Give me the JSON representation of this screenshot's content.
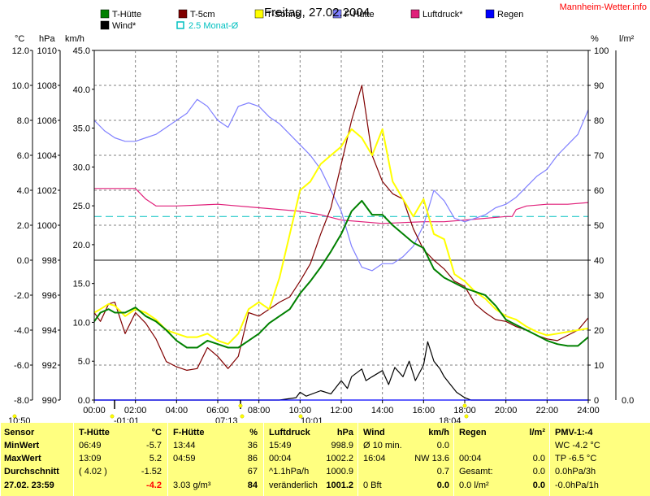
{
  "header": {
    "title": "Freitag, 27.02.2004",
    "brand": "Mannheim-Wetter.info"
  },
  "legend": [
    {
      "label": "T-Hütte",
      "color": "#008000"
    },
    {
      "label": "T-5cm",
      "color": "#800000"
    },
    {
      "label": "T-Sonne",
      "color": "#ffff00"
    },
    {
      "label": "F-Hütte",
      "color": "#8080ff"
    },
    {
      "label": "Luftdruck*",
      "color": "#e0207a"
    },
    {
      "label": "Regen",
      "color": "#0000ff"
    },
    {
      "label": "Wind*",
      "color": "#000000"
    },
    {
      "label": "2.5 Monat-Ø",
      "color": "#00c0c0"
    }
  ],
  "axis_units": {
    "left1": "°C",
    "left2": "hPa",
    "left3": "km/h",
    "right1": "%",
    "right2": "l/m²"
  },
  "axes": {
    "temp_ticks": [
      "12.0",
      "10.0",
      "8.0",
      "6.0",
      "4.0",
      "2.0",
      "0.0",
      "-2.0",
      "-4.0",
      "-6.0",
      "-8.0"
    ],
    "hpa_ticks": [
      "1010",
      "1008",
      "1006",
      "1004",
      "1002",
      "1000",
      "998",
      "996",
      "994",
      "992",
      "990"
    ],
    "kmh_ticks": [
      "45.0",
      "40.0",
      "35.0",
      "30.0",
      "25.0",
      "20.0",
      "15.0",
      "10.0",
      "5.0",
      "0.0"
    ],
    "pct_ticks": [
      "100",
      "90",
      "80",
      "70",
      "60",
      "50",
      "40",
      "30",
      "20",
      "10",
      "0"
    ],
    "rain_tick": "0.0",
    "time_ticks": [
      "00:00",
      "02:00",
      "04:00",
      "06:00",
      "08:00",
      "10:00",
      "12:00",
      "14:00",
      "16:00",
      "18:00",
      "20:00",
      "22:00",
      "24:00"
    ]
  },
  "markers": {
    "sunrise": "10:50",
    "tmin_time": "-01:01",
    "tmax_time": "07:13",
    "t_mark": "10:01",
    "sunset": "18:04"
  },
  "chart_data": {
    "type": "line",
    "x_unit": "hour of day",
    "xlim": [
      0,
      24
    ],
    "y_left_temp": [
      -8,
      12
    ],
    "y_left_pressure": [
      990,
      1010
    ],
    "y_left_wind": [
      0,
      45
    ],
    "y_right_humidity": [
      0,
      100
    ],
    "grid": true,
    "avg_line_temp": 2.5,
    "series": [
      {
        "name": "T-Hütte",
        "color": "#008000",
        "axis": "temp",
        "x": [
          0,
          0.3,
          0.7,
          1,
          1.5,
          2,
          2.5,
          3,
          3.5,
          4,
          4.5,
          5,
          5.5,
          6,
          6.5,
          7,
          7.5,
          8,
          8.5,
          9,
          9.5,
          10,
          10.5,
          11,
          11.5,
          12,
          12.5,
          13,
          13.5,
          14,
          14.5,
          15,
          15.5,
          16,
          16.5,
          17,
          17.5,
          18,
          18.5,
          19,
          19.5,
          20,
          20.5,
          21,
          21.5,
          22,
          22.5,
          23,
          23.5,
          24
        ],
        "y": [
          -3.5,
          -3,
          -2.8,
          -3,
          -3,
          -2.7,
          -3.2,
          -3.5,
          -4,
          -4.6,
          -5,
          -5,
          -4.6,
          -4.8,
          -5,
          -5,
          -4.6,
          -4.2,
          -3.6,
          -3.2,
          -2.8,
          -1.9,
          -1.2,
          -0.4,
          0.5,
          1.5,
          2.8,
          3.4,
          2.6,
          2.6,
          2,
          1.5,
          1,
          0.7,
          -0.5,
          -1,
          -1.3,
          -1.6,
          -1.8,
          -2,
          -2.6,
          -3.4,
          -3.7,
          -4,
          -4.3,
          -4.6,
          -4.8,
          -4.9,
          -4.9,
          -4.4
        ]
      },
      {
        "name": "T-5cm",
        "color": "#800000",
        "axis": "temp",
        "x": [
          0,
          0.3,
          0.7,
          1,
          1.5,
          2,
          2.5,
          3,
          3.5,
          4,
          4.5,
          5,
          5.5,
          6,
          6.5,
          7,
          7.5,
          8,
          8.5,
          9,
          9.5,
          10,
          10.5,
          11,
          11.5,
          12,
          12.5,
          13,
          13.5,
          14,
          14.5,
          15,
          15.5,
          16,
          16.5,
          17,
          17.5,
          18,
          18.5,
          19,
          19.5,
          20,
          20.5,
          21,
          21.5,
          22,
          22.5,
          23,
          23.5,
          24
        ],
        "y": [
          -3,
          -3.5,
          -2.5,
          -2.4,
          -4.2,
          -3,
          -3.6,
          -4.5,
          -5.8,
          -6.1,
          -6.3,
          -6.2,
          -5,
          -5.5,
          -6.2,
          -5.5,
          -3,
          -3.2,
          -2.8,
          -2.4,
          -2.1,
          -1.2,
          -0.2,
          1.5,
          3,
          5.5,
          8,
          10,
          6,
          4.5,
          3.8,
          3.5,
          1.8,
          0.6,
          0,
          -0.5,
          -1.2,
          -1.5,
          -2.5,
          -3,
          -3.4,
          -3.5,
          -3.8,
          -4,
          -4.3,
          -4.5,
          -4.6,
          -4.3,
          -4,
          -3.3
        ]
      },
      {
        "name": "T-Sonne",
        "color": "#ffff00",
        "axis": "temp",
        "x": [
          0,
          0.3,
          0.7,
          1,
          1.5,
          2,
          2.5,
          3,
          3.5,
          4,
          4.5,
          5,
          5.5,
          6,
          6.5,
          7,
          7.5,
          8,
          8.5,
          9,
          9.5,
          10,
          10.5,
          11,
          11.5,
          12,
          12.5,
          13,
          13.5,
          14,
          14.5,
          15,
          15.5,
          16,
          16.5,
          17,
          17.5,
          18,
          18.5,
          19,
          19.5,
          20,
          20.5,
          21,
          21.5,
          22,
          22.5,
          23,
          23.5,
          24
        ],
        "y": [
          -3,
          -2.8,
          -2.5,
          -2.6,
          -3.2,
          -2.8,
          -3,
          -3.4,
          -4,
          -4.2,
          -4.4,
          -4.4,
          -4.2,
          -4.6,
          -4.8,
          -4.2,
          -2.8,
          -2.4,
          -2.8,
          -1,
          1.5,
          4,
          4.5,
          5.5,
          6,
          6.5,
          7.5,
          7,
          6,
          7.5,
          4.5,
          3.5,
          2.5,
          3.5,
          1.5,
          1.2,
          -0.8,
          -1.2,
          -1.8,
          -2.2,
          -2.8,
          -3.2,
          -3.4,
          -3.8,
          -4.1,
          -4.3,
          -4.2,
          -4.1,
          -4,
          -3.9
        ]
      },
      {
        "name": "F-Hütte",
        "color": "#8080ff",
        "axis": "humidity",
        "x": [
          0,
          0.5,
          1,
          1.5,
          2,
          2.5,
          3,
          3.5,
          4,
          4.5,
          5,
          5.5,
          6,
          6.5,
          7,
          7.5,
          8,
          8.5,
          9,
          9.5,
          10,
          10.5,
          11,
          11.5,
          12,
          12.5,
          13,
          13.5,
          14,
          14.5,
          15,
          15.5,
          16,
          16.5,
          17,
          17.5,
          18,
          18.5,
          19,
          19.5,
          20,
          20.5,
          21,
          21.5,
          22,
          22.5,
          23,
          23.5,
          24
        ],
        "y": [
          80,
          77,
          75,
          74,
          74,
          75,
          76,
          78,
          80,
          82,
          86,
          84,
          80,
          78,
          84,
          85,
          84,
          81,
          79,
          76,
          73,
          70,
          66,
          60,
          54,
          44,
          38,
          37,
          39,
          39,
          41,
          44,
          50,
          60,
          57,
          52,
          51,
          52,
          53,
          55,
          56,
          58,
          61,
          64,
          66,
          70,
          73,
          76,
          83
        ]
      },
      {
        "name": "Luftdruck*",
        "color": "#e0207a",
        "axis": "pressure",
        "x": [
          0,
          1,
          2,
          2.5,
          3,
          4,
          6,
          8,
          10,
          11,
          12,
          14,
          16,
          17,
          18,
          20,
          20.3,
          20.5,
          21,
          22,
          23,
          24
        ],
        "y": [
          1002.1,
          1002.1,
          1002.1,
          1001.5,
          1001.1,
          1001.1,
          1001.2,
          1001,
          1000.8,
          1000.6,
          1000.3,
          1000.1,
          1000.2,
          1000.2,
          1000.3,
          1000.5,
          1000.5,
          1000.9,
          1001.1,
          1001.2,
          1001.2,
          1001.3
        ]
      },
      {
        "name": "Wind*",
        "color": "#000000",
        "axis": "wind",
        "x": [
          0,
          9,
          9.8,
          10,
          10.3,
          11,
          11.5,
          12,
          12.3,
          12.5,
          13,
          13.2,
          13.5,
          14,
          14.3,
          14.6,
          15,
          15.3,
          15.6,
          16,
          16.2,
          16.5,
          16.8,
          17,
          17.3,
          17.6,
          18,
          18.3,
          24
        ],
        "y": [
          0,
          0,
          0.3,
          1,
          0.5,
          1.2,
          0.8,
          2.5,
          1.5,
          3,
          4,
          2.5,
          3,
          3.8,
          2,
          4.2,
          3,
          5,
          2.5,
          4.5,
          7.5,
          5,
          4,
          3,
          2,
          1,
          0.3,
          0,
          0
        ]
      },
      {
        "name": "Regen",
        "color": "#0000ff",
        "axis": "rain",
        "x": [
          0,
          24
        ],
        "y": [
          0,
          0
        ]
      }
    ]
  },
  "info_table": {
    "columns": [
      {
        "head": [
          "Sensor"
        ],
        "rows": [
          [
            "MinWert"
          ],
          [
            "MaxWert"
          ],
          [
            "Durchschnitt"
          ],
          [
            "27.02. 23:59"
          ]
        ]
      },
      {
        "head": [
          "T-Hütte",
          "°C"
        ],
        "rows": [
          [
            "06:49",
            "-5.7"
          ],
          [
            "13:09",
            "5.2"
          ],
          [
            "( 4.02 )",
            "-1.52"
          ],
          [
            "",
            "-4.2"
          ]
        ]
      },
      {
        "head": [
          "F-Hütte",
          "%"
        ],
        "rows": [
          [
            "13:44",
            "36"
          ],
          [
            "04:59",
            "86"
          ],
          [
            "",
            "67"
          ],
          [
            "3.03 g/m³",
            "84"
          ]
        ]
      },
      {
        "head": [
          "Luftdruck",
          "hPa"
        ],
        "rows": [
          [
            "15:49",
            "998.9"
          ],
          [
            "00:04",
            "1002.2"
          ],
          [
            "^1.1hPa/h",
            "1000.9"
          ],
          [
            "veränderlich",
            "1001.2"
          ]
        ]
      },
      {
        "head": [
          "Wind",
          "km/h"
        ],
        "rows": [
          [
            "Ø 10 min.",
            "0.0"
          ],
          [
            "16:04",
            "NW 13.6"
          ],
          [
            "",
            "0.7"
          ],
          [
            "0 Bft",
            "0.0"
          ]
        ]
      },
      {
        "head": [
          "Regen",
          "l/m²"
        ],
        "rows": [
          [
            "",
            ""
          ],
          [
            "00:04",
            "0.0"
          ],
          [
            "Gesamt:",
            "0.0"
          ],
          [
            "0.0 l/m²",
            "0.0"
          ]
        ]
      },
      {
        "head": [
          "PMV-1:-4"
        ],
        "rows": [
          [
            "WC -4.2 °C"
          ],
          [
            "TP -6.5 °C"
          ],
          [
            "0.0hPa/3h"
          ],
          [
            "-0.0hPa/1h"
          ]
        ]
      }
    ]
  }
}
